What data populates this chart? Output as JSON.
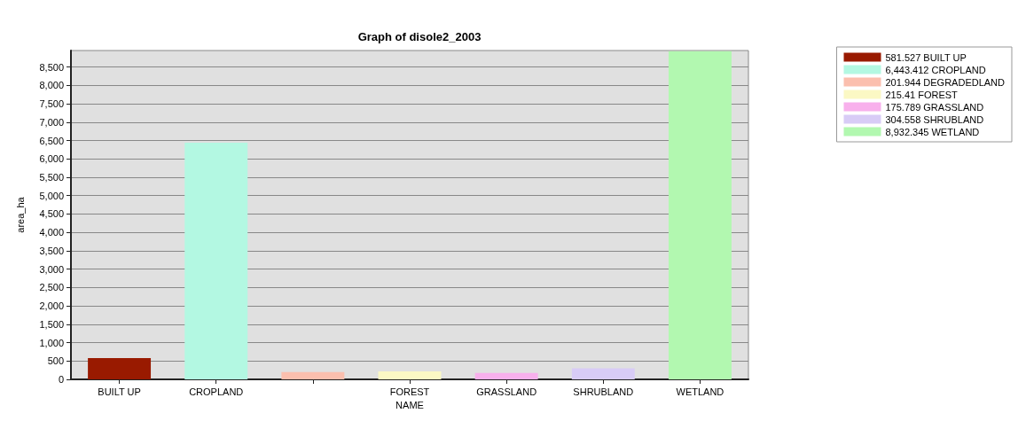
{
  "chart_data": {
    "type": "bar",
    "title": "Graph of disole2_2003",
    "xlabel": "NAME",
    "ylabel": "area_ha",
    "categories": [
      "BUILT UP",
      "CROPLAND",
      null,
      "FOREST",
      "GRASSLAND",
      "SHRUBLAND",
      "WETLAND"
    ],
    "series": [
      {
        "name": "581.527 BUILT UP",
        "color": "#991a00",
        "values": [
          581.527,
          null,
          null,
          null,
          null,
          null,
          null
        ]
      },
      {
        "name": "6,443.412 CROPLAND",
        "color": "#b3f8e2",
        "values": [
          null,
          6443.412,
          null,
          null,
          null,
          null,
          null
        ]
      },
      {
        "name": "201.944 DEGRADEDLAND",
        "color": "#fbbfae",
        "values": [
          null,
          null,
          201.944,
          null,
          null,
          null,
          null
        ]
      },
      {
        "name": "215.41 FOREST",
        "color": "#fbf8c4",
        "values": [
          null,
          null,
          null,
          215.41,
          null,
          null,
          null
        ]
      },
      {
        "name": "175.789 GRASSLAND",
        "color": "#f8b0ec",
        "values": [
          null,
          null,
          null,
          null,
          175.789,
          null,
          null
        ]
      },
      {
        "name": "304.558 SHRUBLAND",
        "color": "#d8ccf6",
        "values": [
          null,
          null,
          null,
          null,
          null,
          304.558,
          null
        ]
      },
      {
        "name": "8,932.345 WETLAND",
        "color": "#b2f8b0",
        "values": [
          null,
          null,
          null,
          null,
          null,
          null,
          8932.345
        ]
      }
    ],
    "ylim": [
      0,
      8950
    ],
    "yticks": [
      0,
      500,
      {
        "value": 1000,
        "label": "1,000"
      },
      {
        "value": 1500,
        "label": "1,500"
      },
      {
        "value": 2000,
        "label": "2,000"
      },
      {
        "value": 2500,
        "label": "2,500"
      },
      {
        "value": 3000,
        "label": "3,000"
      },
      {
        "value": 3500,
        "label": "3,500"
      },
      {
        "value": 4000,
        "label": "4,000"
      },
      {
        "value": 4500,
        "label": "4,500"
      },
      {
        "value": 5000,
        "label": "5,000"
      },
      {
        "value": 5500,
        "label": "5,500"
      },
      {
        "value": 6000,
        "label": "6,000"
      },
      {
        "value": 6500,
        "label": "6,500"
      },
      {
        "value": 7000,
        "label": "7,000"
      },
      {
        "value": 7500,
        "label": "7,500"
      },
      {
        "value": 8000,
        "label": "8,000"
      },
      {
        "value": 8500,
        "label": "8,500"
      }
    ],
    "grid": "y",
    "legend": "top right"
  }
}
